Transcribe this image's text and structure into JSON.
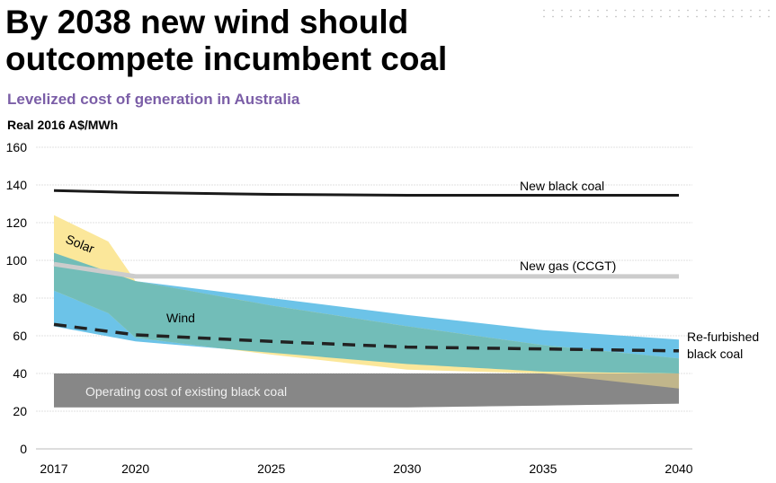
{
  "header": {
    "title_line1": "By 2038 new wind should",
    "title_line2": "outcompete incumbent coal"
  },
  "chart_data": {
    "type": "area",
    "title": "Levelized cost of generation in Australia",
    "ylabel": "Real 2016 A$/MWh",
    "ylim": [
      0,
      160
    ],
    "yticks": [
      0,
      20,
      40,
      60,
      80,
      100,
      120,
      140,
      160
    ],
    "xlim": [
      2017,
      2040
    ],
    "xticks": [
      2017,
      2020,
      2025,
      2030,
      2035,
      2040
    ],
    "grid": true,
    "series": [
      {
        "name": "New black coal",
        "type": "line",
        "x": [
          2017,
          2020,
          2025,
          2030,
          2035,
          2040
        ],
        "y": [
          137,
          136,
          135,
          134.5,
          134.5,
          134.5
        ],
        "color": "#1a1a1a"
      },
      {
        "name": "New gas (CCGT)",
        "type": "line",
        "x": [
          2017,
          2020,
          2025,
          2030,
          2035,
          2040
        ],
        "y": [
          98,
          91.5,
          91.5,
          91.5,
          91.5,
          91.5
        ],
        "color": "#cccccc"
      },
      {
        "name": "Re-furbished black coal",
        "label_lines": [
          "Re-furbished",
          "black coal"
        ],
        "type": "dashed-line",
        "x": [
          2017,
          2020,
          2025,
          2030,
          2035,
          2040
        ],
        "y": [
          66,
          60.5,
          57,
          54,
          53,
          52
        ],
        "color": "#222222"
      },
      {
        "name": "Operating cost of existing black coal",
        "type": "band",
        "x": [
          2017,
          2020,
          2025,
          2030,
          2035,
          2040
        ],
        "low": [
          22,
          22,
          22,
          22,
          23,
          24
        ],
        "high": [
          40,
          40,
          40,
          40,
          40,
          40
        ],
        "color": "#939393"
      },
      {
        "name": "Wind",
        "type": "band",
        "x": [
          2017,
          2020,
          2025,
          2030,
          2035,
          2040
        ],
        "low": [
          65,
          57,
          51,
          45,
          41,
          40
        ],
        "high": [
          104,
          89,
          80,
          71,
          63,
          58
        ],
        "color": "#6cc3e8"
      },
      {
        "name": "Solar",
        "type": "band",
        "x": [
          2017,
          2019,
          2020,
          2025,
          2030,
          2035,
          2040
        ],
        "low": [
          84,
          72,
          59,
          50,
          42,
          40,
          32
        ],
        "high": [
          124,
          110,
          89,
          76,
          65,
          55,
          48
        ],
        "color": "#fbe79a"
      }
    ],
    "overlap_color": "#72bdb8"
  }
}
